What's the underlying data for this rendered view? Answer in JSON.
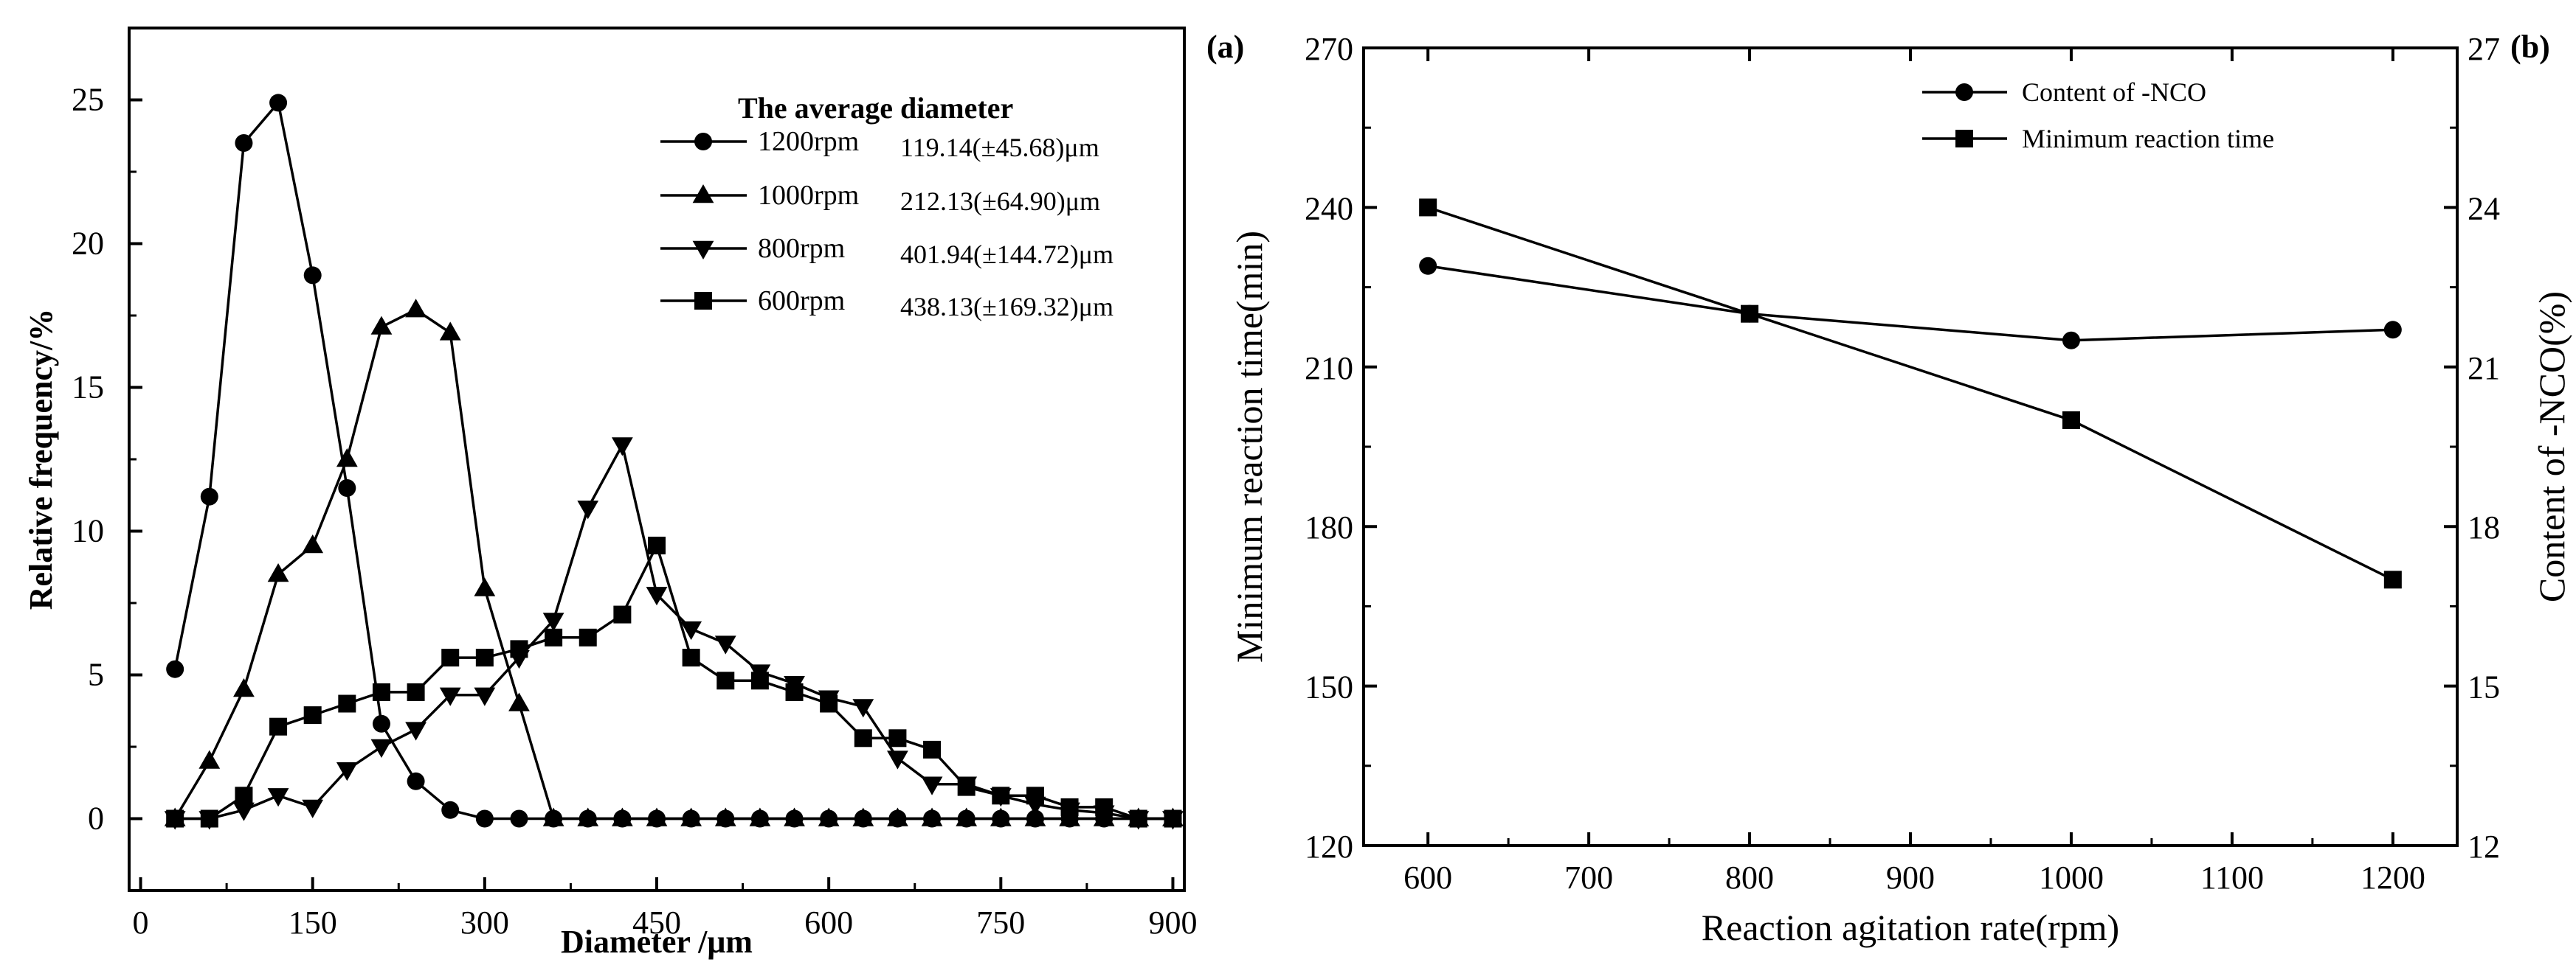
{
  "chart_data": [
    {
      "type": "line",
      "panel_label": "",
      "xlabel": "Diameter /μm",
      "ylabel": "Relative frequency/%",
      "xlim": [
        -10,
        910
      ],
      "ylim": [
        -2.5,
        27.5
      ],
      "xticks": [
        "0",
        "150",
        "300",
        "450",
        "600",
        "750",
        "900"
      ],
      "yticks": [
        "0",
        "5",
        "10",
        "15",
        "20",
        "25"
      ],
      "legend_title": "The average diameter",
      "series": [
        {
          "name": "1200rpm",
          "marker": "circle",
          "avg_label": "119.14(±45.68)μm",
          "x": [
            30,
            60,
            90,
            120,
            150,
            180,
            210,
            240,
            270,
            300,
            330,
            360,
            390,
            420,
            450,
            480,
            510,
            540,
            570,
            600,
            630,
            660,
            690,
            720,
            750,
            780,
            810,
            840,
            870,
            900
          ],
          "values": [
            5.2,
            11.2,
            23.5,
            24.9,
            18.9,
            11.5,
            3.3,
            1.3,
            0.3,
            0,
            0,
            0,
            0,
            0,
            0,
            0,
            0,
            0,
            0,
            0,
            0,
            0,
            0,
            0,
            0,
            0,
            0,
            0,
            0,
            0
          ]
        },
        {
          "name": "1000rpm",
          "marker": "triangle-up",
          "avg_label": "212.13(±64.90)μm",
          "x": [
            30,
            60,
            90,
            120,
            150,
            180,
            210,
            240,
            270,
            300,
            330,
            360,
            390,
            420,
            450,
            480,
            510,
            540,
            570,
            600,
            630,
            660,
            690,
            720,
            750,
            780,
            810,
            840,
            870,
            900
          ],
          "values": [
            0,
            2.0,
            4.5,
            8.5,
            9.5,
            12.5,
            17.1,
            17.7,
            16.9,
            8.0,
            4.0,
            0,
            0,
            0,
            0,
            0,
            0,
            0,
            0,
            0,
            0,
            0,
            0,
            0,
            0,
            0,
            0,
            0,
            0,
            0
          ]
        },
        {
          "name": "800rpm",
          "marker": "triangle-down",
          "avg_label": "401.94(±144.72)μm",
          "x": [
            30,
            60,
            90,
            120,
            150,
            180,
            210,
            240,
            270,
            300,
            330,
            360,
            390,
            420,
            450,
            480,
            510,
            540,
            570,
            600,
            630,
            660,
            690,
            720,
            750,
            780,
            810,
            840,
            870,
            900
          ],
          "values": [
            0,
            0,
            0.3,
            0.8,
            0.4,
            1.7,
            2.5,
            3.1,
            4.3,
            4.3,
            5.6,
            6.9,
            10.8,
            13.0,
            7.8,
            6.6,
            6.1,
            5.1,
            4.7,
            4.2,
            3.9,
            2.1,
            1.2,
            1.2,
            0.8,
            0.5,
            0.3,
            0.2,
            0,
            0
          ]
        },
        {
          "name": "600rpm",
          "marker": "square",
          "avg_label": "438.13(±169.32)μm",
          "x": [
            30,
            60,
            90,
            120,
            150,
            180,
            210,
            240,
            270,
            300,
            330,
            360,
            390,
            420,
            450,
            480,
            510,
            540,
            570,
            600,
            630,
            660,
            690,
            720,
            750,
            780,
            810,
            840,
            870,
            900
          ],
          "values": [
            0,
            0,
            0.8,
            3.2,
            3.6,
            4.0,
            4.4,
            4.4,
            5.6,
            5.6,
            5.9,
            6.3,
            6.3,
            7.1,
            9.5,
            5.6,
            4.8,
            4.8,
            4.4,
            4.0,
            2.8,
            2.8,
            2.4,
            1.1,
            0.8,
            0.8,
            0.4,
            0.4,
            0,
            0
          ]
        }
      ]
    },
    {
      "type": "line",
      "panel_label_left": "(a)",
      "panel_label_right": "(b)",
      "xlabel": "Reaction agitation rate(rpm)",
      "ylabel_left": "Minimum reaction time(min)",
      "ylabel_right": "Content of -NCO(%)",
      "xlim": [
        560,
        1240
      ],
      "ylim_left": [
        120,
        270
      ],
      "ylim_right": [
        12,
        27
      ],
      "xticks": [
        "600",
        "700",
        "800",
        "900",
        "1000",
        "1100",
        "1200"
      ],
      "yticks_left": [
        "120",
        "150",
        "180",
        "210",
        "240",
        "270"
      ],
      "yticks_right": [
        "12",
        "15",
        "18",
        "21",
        "24",
        "27"
      ],
      "categories": [
        600,
        800,
        1000,
        1200
      ],
      "series": [
        {
          "name": "Content of -NCO",
          "marker": "circle",
          "axis": "right",
          "values": [
            22.9,
            22.0,
            21.5,
            21.7
          ]
        },
        {
          "name": "Minimum reaction time",
          "marker": "square",
          "axis": "left",
          "values": [
            240,
            220,
            200,
            170
          ]
        }
      ]
    }
  ]
}
